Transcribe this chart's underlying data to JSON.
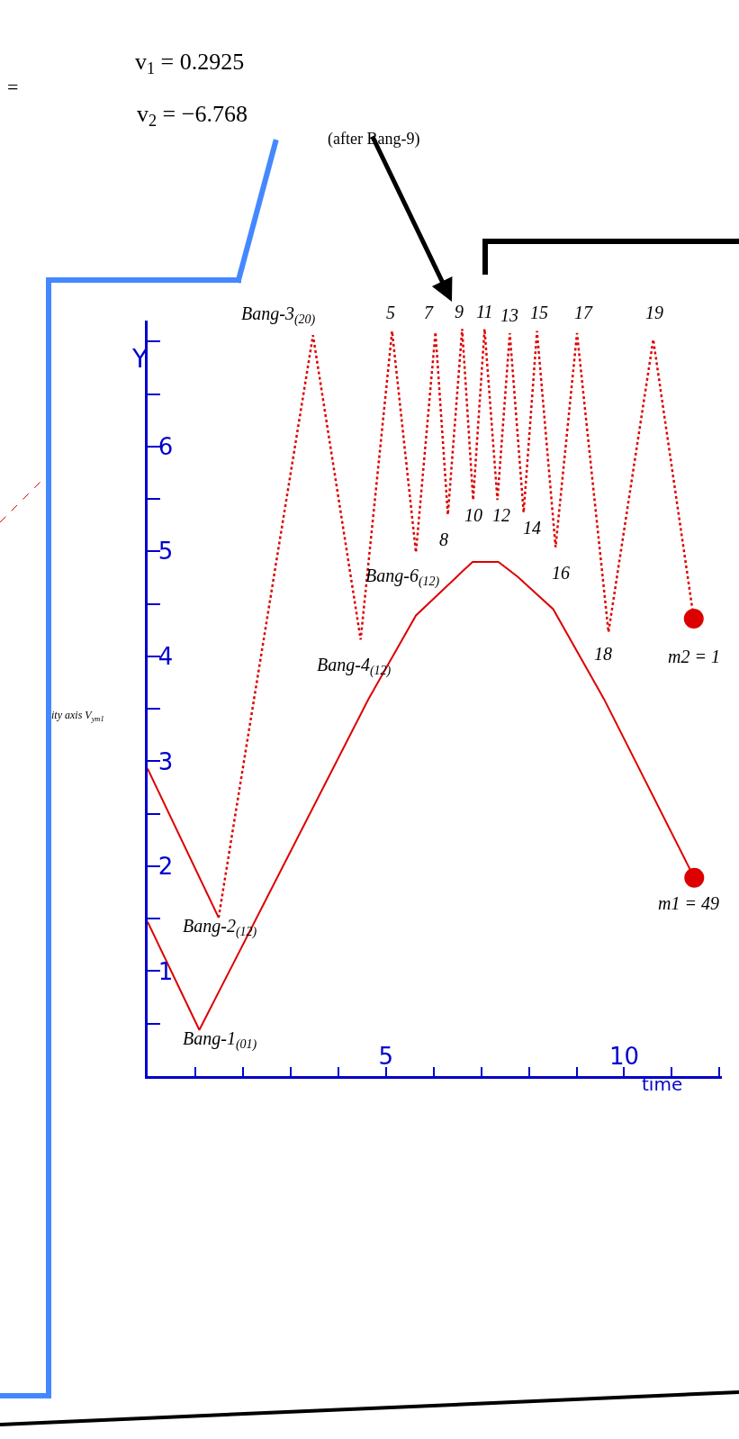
{
  "chart_data": {
    "type": "line",
    "xlabel": "time",
    "ylabel": "Y",
    "xlim": [
      0,
      12.05
    ],
    "ylim": [
      0,
      7.2
    ],
    "xticks": [
      {
        "value": 0,
        "label": null
      },
      {
        "value": 1,
        "label": null
      },
      {
        "value": 2,
        "label": null
      },
      {
        "value": 3,
        "label": null
      },
      {
        "value": 4,
        "label": null
      },
      5,
      {
        "value": 6,
        "label": null
      },
      {
        "value": 7,
        "label": null
      },
      {
        "value": 8,
        "label": null
      },
      {
        "value": 9,
        "label": null
      },
      10,
      {
        "value": 11,
        "label": null
      },
      {
        "value": 12,
        "label": null
      }
    ],
    "yticks": [
      {
        "value": 0,
        "label": null
      },
      {
        "value": 0.5,
        "label": null
      },
      {
        "value": 1,
        "label": "1"
      },
      {
        "value": 1.5,
        "label": null
      },
      {
        "value": 2,
        "label": "2"
      },
      {
        "value": 2.5,
        "label": null
      },
      {
        "value": 3,
        "label": "3"
      },
      {
        "value": 3.5,
        "label": null
      },
      {
        "value": 4,
        "label": "4"
      },
      {
        "value": 4.5,
        "label": null
      },
      {
        "value": 5,
        "label": "5"
      },
      {
        "value": 5.5,
        "label": null
      },
      {
        "value": 6,
        "label": "6"
      },
      {
        "value": 6.5,
        "label": null
      },
      {
        "value": 7,
        "label": null
      }
    ],
    "legend": false,
    "series": [
      {
        "color": "#dd0000",
        "line_style": "solid",
        "marker": "none",
        "x": [
          0,
          1.085,
          4.63,
          5.63,
          6.63,
          6.82,
          7.36,
          7.76,
          8.51,
          9.58,
          11.47
        ],
        "values": [
          1.47,
          0.44,
          3.59,
          4.39,
          4.82,
          4.9,
          4.9,
          4.76,
          4.45,
          3.59,
          1.89
        ]
      },
      {
        "color": "#dd0000",
        "line_style": "solid",
        "marker": "none",
        "x": [
          0,
          1.49
        ],
        "values": [
          2.93,
          1.51
        ]
      },
      {
        "color": "#dd0000",
        "line_style": "dotted",
        "marker": "none",
        "x": [
          1.49,
          3.47,
          4.47,
          5.13,
          5.63,
          6.04,
          6.3,
          6.6,
          6.83,
          7.07,
          7.34,
          7.6,
          7.89,
          8.17,
          8.56,
          9.01,
          9.67,
          10.61,
          11.46
        ],
        "values": [
          1.51,
          7.06,
          4.16,
          7.1,
          4.99,
          7.09,
          5.35,
          7.12,
          5.49,
          7.12,
          5.49,
          7.08,
          5.37,
          7.1,
          5.04,
          7.08,
          4.23,
          7.02,
          4.36
        ]
      },
      {
        "type": "scatter",
        "name": "m1 = 49",
        "color": "#dd0000",
        "marker": "circle",
        "x": [
          11.47
        ],
        "values": [
          1.89
        ]
      },
      {
        "type": "scatter",
        "name": "m2 = 1",
        "color": "#dd0000",
        "marker": "circle",
        "x": [
          11.46
        ],
        "values": [
          4.36
        ]
      }
    ],
    "annotations": [
      "=",
      "v$_{1}$ = 0.2925",
      "v$_{2}$ = −6.768",
      "(after Bang-9)",
      "ity axis V$_{ym1}$",
      {
        "text": "Bang-1$_{(01)}$",
        "x": 1.085,
        "y": 0.44
      },
      {
        "text": "Bang-2$_{(12)}$",
        "x": 1.49,
        "y": 1.51
      },
      {
        "text": "Bang-3$_{(20)}$",
        "x": 3.47,
        "y": 7.06
      },
      {
        "text": "Bang-4$_{(12)}$",
        "x": 4.47,
        "y": 4.16
      },
      {
        "text": "5",
        "x": 5.13,
        "y": 7.1
      },
      {
        "text": "Bang-6$_{(12)}$",
        "x": 5.63,
        "y": 4.99
      },
      {
        "text": "7",
        "x": 6.04,
        "y": 7.09
      },
      {
        "text": "8",
        "x": 6.3,
        "y": 5.35
      },
      {
        "text": "9",
        "x": 6.6,
        "y": 7.12
      },
      {
        "text": "10",
        "x": 6.83,
        "y": 5.49
      },
      {
        "text": "11",
        "x": 7.07,
        "y": 7.12
      },
      {
        "text": "12",
        "x": 7.34,
        "y": 5.49
      },
      {
        "text": "13",
        "x": 7.6,
        "y": 7.08
      },
      {
        "text": "14",
        "x": 7.89,
        "y": 5.37
      },
      {
        "text": "15",
        "x": 8.17,
        "y": 7.1
      },
      {
        "text": "16",
        "x": 8.56,
        "y": 5.04
      },
      {
        "text": "17",
        "x": 9.01,
        "y": 7.08
      },
      {
        "text": "18",
        "x": 9.67,
        "y": 4.23
      },
      {
        "text": "19",
        "x": 10.61,
        "y": 7.02
      }
    ]
  }
}
